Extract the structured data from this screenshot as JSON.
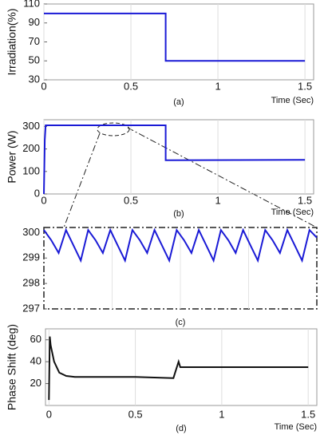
{
  "chart_data": [
    {
      "type": "line",
      "ylabel": "Irradiation(%)",
      "xlabel": "Time (Sec)",
      "caption": "(a)",
      "x": [
        0,
        0.7,
        0.7,
        1.5
      ],
      "series": [
        {
          "color": "#1a1ad6",
          "values": [
            100,
            100,
            50,
            50
          ]
        }
      ],
      "xlim": [
        0,
        1.55
      ],
      "ylim": [
        30,
        110
      ],
      "xticks": [
        0,
        0.5,
        1,
        1.5
      ],
      "yticks": [
        30,
        50,
        70,
        90,
        110
      ],
      "grid": true
    },
    {
      "type": "line",
      "ylabel": "Power (W)",
      "xlabel": "Time (Sec)",
      "caption": "(b)",
      "x": [
        0,
        0.005,
        0.01,
        0.7,
        0.7,
        1.5
      ],
      "series": [
        {
          "color": "#1a1ad6",
          "values": [
            0,
            240,
            305,
            305,
            150,
            152
          ]
        }
      ],
      "xlim": [
        0,
        1.55
      ],
      "ylim": [
        0,
        330
      ],
      "xticks": [
        0,
        0.5,
        1,
        1.5
      ],
      "yticks": [
        0,
        100,
        200,
        300
      ],
      "grid": true
    },
    {
      "type": "line",
      "caption": "(c)",
      "x": [
        0,
        1,
        2,
        3,
        4,
        5,
        6,
        7,
        8,
        9,
        10,
        11,
        12,
        13,
        14,
        15,
        16,
        17,
        18,
        19,
        20,
        21,
        22,
        23,
        24,
        25,
        26,
        27,
        28,
        29,
        30,
        31,
        32,
        33,
        34,
        35,
        36,
        37
      ],
      "series": [
        {
          "color": "#1a1ad6",
          "values": [
            300.1,
            299.7,
            299.2,
            300.1,
            299.5,
            298.9,
            300.1,
            299.7,
            299.2,
            300.1,
            299.5,
            298.9,
            300.1,
            299.7,
            299.2,
            300.1,
            299.5,
            298.9,
            300.1,
            299.7,
            299.2,
            300.1,
            299.5,
            298.9,
            300.1,
            299.7,
            299.2,
            300.1,
            299.5,
            298.9,
            300.1,
            299.7,
            299.2,
            300.1,
            299.5,
            298.9,
            300.1,
            299.8
          ]
        }
      ],
      "xlim": [
        0,
        37
      ],
      "ylim": [
        297,
        300.2
      ],
      "yticks": [
        297,
        298,
        299,
        300
      ],
      "grid": true
    },
    {
      "type": "line",
      "ylabel": "Phase Shift (deg)",
      "xlabel": "Time (Sec)",
      "caption": "(d)",
      "x": [
        0,
        0.005,
        0.01,
        0.03,
        0.06,
        0.1,
        0.15,
        0.3,
        0.5,
        0.72,
        0.73,
        0.75,
        0.76,
        1.0,
        1.5
      ],
      "series": [
        {
          "color": "#111111",
          "values": [
            5,
            63,
            55,
            40,
            30,
            27,
            26,
            26,
            26,
            25,
            30,
            40,
            35,
            35,
            35
          ]
        }
      ],
      "xlim": [
        -0.02,
        1.55
      ],
      "ylim": [
        0,
        70
      ],
      "xticks": [
        0,
        0.5,
        1,
        1.5
      ],
      "yticks": [
        20,
        40,
        60
      ],
      "grid": true
    }
  ]
}
